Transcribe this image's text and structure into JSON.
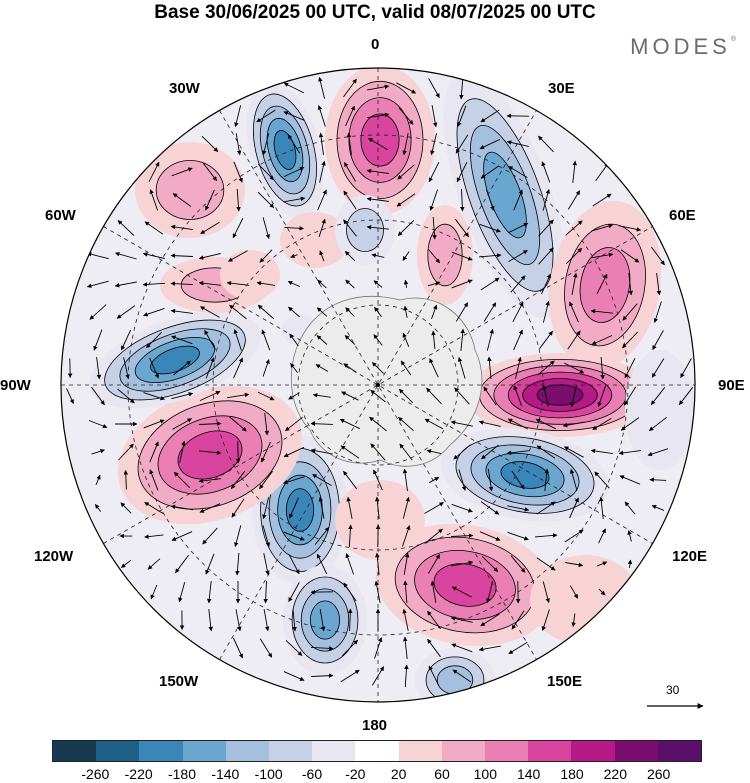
{
  "header": {
    "title": "Base 30/06/2025 00 UTC, valid 08/07/2025 00 UTC",
    "brand": "MODES"
  },
  "map": {
    "projection": "south polar stereographic",
    "longitude_labels": {
      "top": "0",
      "bottom": "180",
      "left": "90W",
      "right": "90E",
      "upper_left_30": "30W",
      "upper_left_60": "60W",
      "upper_right_30": "30E",
      "upper_right_60": "60E",
      "lower_left_120": "120W",
      "lower_left_150": "150W",
      "lower_right_120": "120E",
      "lower_right_150": "150E"
    },
    "reference_vector": {
      "label": "30"
    }
  },
  "colorbar": {
    "ticks": [
      "-260",
      "-220",
      "-180",
      "-140",
      "-100",
      "-60",
      "-20",
      "20",
      "60",
      "100",
      "140",
      "180",
      "220",
      "260"
    ],
    "colors": [
      "#173a52",
      "#1f5f86",
      "#3b86b8",
      "#6aa6cf",
      "#a4c0de",
      "#c6d0e7",
      "#e7e6f1",
      "#ffffff",
      "#f8d3d6",
      "#f2abc4",
      "#ea7fb3",
      "#d9449f",
      "#b51a87",
      "#7a0d6e",
      "#5a0f6b"
    ]
  },
  "chart_data": {
    "type": "heatmap",
    "title": "Base 30/06/2025 00 UTC, valid 08/07/2025 00 UTC",
    "colorbar_levels": [
      -260,
      -220,
      -180,
      -140,
      -100,
      -60,
      -20,
      20,
      60,
      100,
      140,
      180,
      220,
      260
    ],
    "anomaly_centers": [
      {
        "sign": "positive",
        "approx_lon": "0",
        "strength": 180
      },
      {
        "sign": "negative",
        "approx_lon": "30W",
        "strength": -200
      },
      {
        "sign": "positive",
        "approx_lon": "45W",
        "strength": 100
      },
      {
        "sign": "negative",
        "approx_lon": "35E",
        "strength": -180
      },
      {
        "sign": "positive",
        "approx_lon": "60E",
        "strength": 140
      },
      {
        "sign": "positive",
        "approx_lon": "90E",
        "strength": 260
      },
      {
        "sign": "negative",
        "approx_lon": "115E",
        "strength": -220
      },
      {
        "sign": "positive",
        "approx_lon": "160E",
        "strength": 180
      },
      {
        "sign": "negative",
        "approx_lon": "165W",
        "strength": -180
      },
      {
        "sign": "negative",
        "approx_lon": "140W",
        "strength": -220
      },
      {
        "sign": "positive",
        "approx_lon": "110W",
        "strength": 180
      },
      {
        "sign": "negative",
        "approx_lon": "80W",
        "strength": -220
      },
      {
        "sign": "positive",
        "approx_lon": "65W",
        "strength": 100
      }
    ]
  }
}
